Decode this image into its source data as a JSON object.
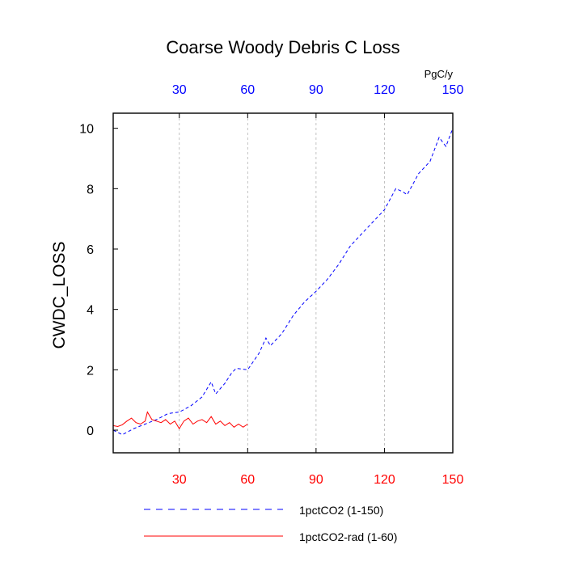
{
  "chart_data": {
    "type": "line",
    "title": "Coarse Woody Debris C Loss",
    "ylabel": "CWDC_LOSS",
    "units": "PgC/y",
    "xlim": [
      1,
      150
    ],
    "ylim": [
      -0.75,
      10.5
    ],
    "x_ticks": [
      30,
      60,
      90,
      120,
      150
    ],
    "y_ticks": [
      0,
      2,
      4,
      6,
      8,
      10
    ],
    "grid": "vertical dashed at x ticks",
    "bottom_axis_color": "#ff0000",
    "top_axis_color": "#0000ff",
    "legend_position": "bottom",
    "series": [
      {
        "name": "1pctCO2 (1-150)",
        "color": "#0000ff",
        "style": "dashed",
        "x": [
          1,
          5,
          10,
          15,
          20,
          25,
          30,
          35,
          40,
          44,
          46,
          50,
          53,
          55,
          60,
          65,
          68,
          70,
          75,
          80,
          85,
          90,
          95,
          100,
          105,
          110,
          115,
          120,
          125,
          128,
          130,
          135,
          140,
          144,
          147,
          150
        ],
        "y": [
          0.0,
          -0.15,
          0.05,
          0.2,
          0.35,
          0.55,
          0.6,
          0.8,
          1.1,
          1.6,
          1.2,
          1.55,
          1.9,
          2.05,
          2.0,
          2.55,
          3.05,
          2.8,
          3.2,
          3.8,
          4.25,
          4.6,
          5.0,
          5.5,
          6.1,
          6.5,
          6.9,
          7.3,
          8.0,
          7.9,
          7.8,
          8.5,
          8.9,
          9.7,
          9.4,
          10.0
        ]
      },
      {
        "name": "1pctCO2-rad (1-60)",
        "color": "#ff0000",
        "style": "solid",
        "x": [
          1,
          3,
          5,
          7,
          9,
          11,
          13,
          15,
          16,
          18,
          20,
          22,
          24,
          26,
          28,
          30,
          32,
          34,
          36,
          38,
          40,
          42,
          44,
          46,
          48,
          50,
          52,
          54,
          56,
          58,
          60
        ],
        "y": [
          0.15,
          0.12,
          0.18,
          0.3,
          0.4,
          0.25,
          0.2,
          0.3,
          0.6,
          0.35,
          0.3,
          0.25,
          0.35,
          0.2,
          0.3,
          0.05,
          0.3,
          0.4,
          0.2,
          0.3,
          0.35,
          0.25,
          0.45,
          0.2,
          0.3,
          0.15,
          0.25,
          0.1,
          0.2,
          0.1,
          0.2
        ]
      }
    ]
  }
}
